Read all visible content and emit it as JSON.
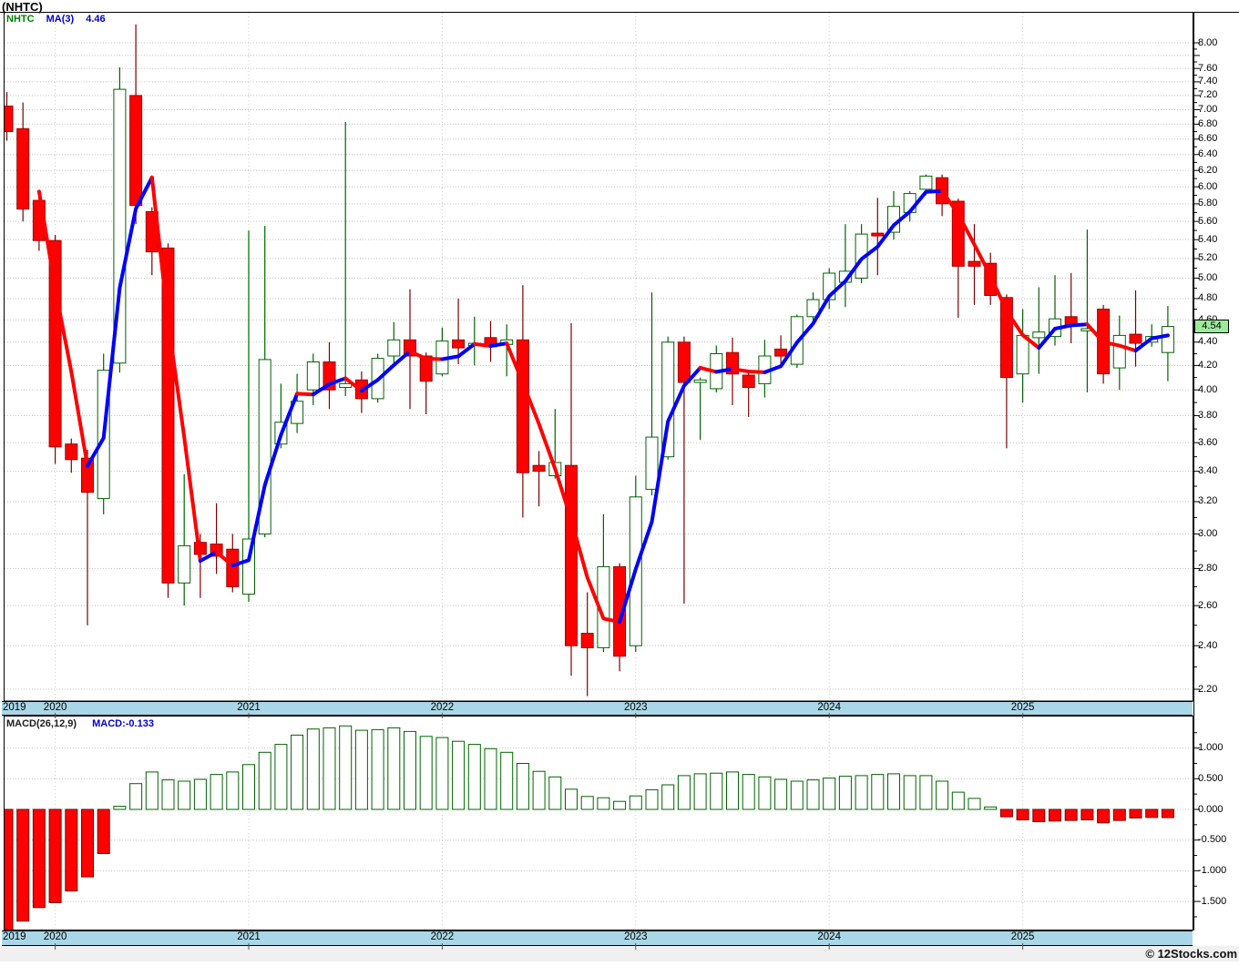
{
  "window": {
    "title": "(NHTC)"
  },
  "price_panel": {
    "legend": {
      "symbol": "NHTC",
      "ma_label": "MA(3)",
      "ma_value": "4.46"
    },
    "axis_labels": [
      "8.00",
      "7.60",
      "7.40",
      "7.20",
      "7.00",
      "6.80",
      "6.60",
      "6.40",
      "6.20",
      "6.00",
      "5.80",
      "5.60",
      "5.40",
      "5.20",
      "5.00",
      "4.80",
      "4.60",
      "4.40",
      "4.20",
      "4.00",
      "3.80",
      "3.60",
      "3.40",
      "3.20",
      "3.00",
      "2.80",
      "2.60",
      "2.40",
      "2.20"
    ],
    "price_tag": "4.54"
  },
  "macd_panel": {
    "legend_label": "MACD(26,12,9)",
    "legend_value": "MACD:-0.133",
    "axis_labels": [
      "1.000",
      "0.500",
      "0.000",
      "-0.500",
      "-1.000",
      "-1.500"
    ]
  },
  "timeline": {
    "years": [
      "2019",
      "2020",
      "2021",
      "2022",
      "2023",
      "2024",
      "2025"
    ],
    "jan_indices": [
      null,
      3,
      15,
      27,
      39,
      51,
      63
    ]
  },
  "footer": {
    "copyright": "© 12Stocks.com"
  },
  "colors": {
    "up_outline": "#006400",
    "down_fill": "#ff0000",
    "down_border": "#a00000",
    "down_wick": "#7d0000",
    "ma_up": "#0000ff",
    "ma_down": "#ff0000",
    "grid": "#c5c5c5",
    "band": "#aad7e7",
    "tag_bg": "#9ceb9c",
    "legend_symbol": "#007f00",
    "legend_blue": "#0000cd"
  },
  "chart_data": {
    "type": "candlestick",
    "title": "(NHTC) monthly candlestick chart with MA(3) overlay and MACD(26,12,9) histogram",
    "symbol": "NHTC",
    "interval": "monthly",
    "ma_period": 3,
    "ma_last_value": 4.46,
    "macd_last_value": -0.133,
    "price_axis_range": [
      2.2,
      8.0
    ],
    "price_scale": "log",
    "macd_axis_range": [
      -1.5,
      1.0
    ],
    "grid": true,
    "columns": [
      "date",
      "open",
      "high",
      "low",
      "close",
      "macd_hist"
    ],
    "rows": [
      [
        "2019-10",
        7.05,
        7.25,
        6.58,
        6.7,
        -2.05
      ],
      [
        "2019-11",
        6.74,
        7.1,
        5.6,
        5.74,
        -1.82
      ],
      [
        "2019-12",
        5.84,
        5.95,
        5.28,
        5.39,
        -1.6
      ],
      [
        "2020-01",
        5.39,
        5.45,
        3.45,
        3.57,
        -1.52
      ],
      [
        "2020-02",
        3.59,
        3.63,
        3.39,
        3.48,
        -1.33
      ],
      [
        "2020-03",
        3.49,
        3.55,
        2.5,
        3.26,
        -1.1
      ],
      [
        "2020-04",
        3.22,
        4.3,
        3.12,
        4.16,
        -0.72
      ],
      [
        "2020-05",
        4.22,
        7.62,
        4.14,
        7.29,
        0.05
      ],
      [
        "2020-06",
        7.2,
        8.3,
        5.57,
        5.78,
        0.42
      ],
      [
        "2020-07",
        5.71,
        5.76,
        5.03,
        5.27,
        0.61
      ],
      [
        "2020-08",
        5.31,
        5.36,
        2.64,
        2.72,
        0.48
      ],
      [
        "2020-09",
        2.72,
        3.38,
        2.6,
        2.93,
        0.46
      ],
      [
        "2020-10",
        2.95,
        3.0,
        2.64,
        2.88,
        0.49
      ],
      [
        "2020-11",
        2.94,
        3.19,
        2.77,
        2.87,
        0.57
      ],
      [
        "2020-12",
        2.91,
        3.0,
        2.67,
        2.7,
        0.61
      ],
      [
        "2021-01",
        2.66,
        5.5,
        2.62,
        2.97,
        0.73
      ],
      [
        "2021-02",
        3.0,
        5.55,
        2.98,
        4.25,
        0.93
      ],
      [
        "2021-03",
        3.59,
        4.05,
        3.56,
        3.75,
        1.06
      ],
      [
        "2021-04",
        3.74,
        4.13,
        3.67,
        3.91,
        1.21
      ],
      [
        "2021-05",
        4.0,
        4.3,
        3.88,
        4.23,
        1.31
      ],
      [
        "2021-06",
        4.23,
        4.4,
        3.85,
        4.0,
        1.33
      ],
      [
        "2021-07",
        4.02,
        6.83,
        3.95,
        4.05,
        1.36
      ],
      [
        "2021-08",
        4.08,
        4.15,
        3.82,
        3.93,
        1.29
      ],
      [
        "2021-09",
        3.93,
        4.3,
        3.9,
        4.26,
        1.3
      ],
      [
        "2021-10",
        4.28,
        4.58,
        4.2,
        4.42,
        1.33
      ],
      [
        "2021-11",
        4.42,
        4.89,
        3.85,
        4.28,
        1.27
      ],
      [
        "2021-12",
        4.28,
        4.31,
        3.81,
        4.07,
        1.19
      ],
      [
        "2022-01",
        4.13,
        4.53,
        4.11,
        4.41,
        1.17
      ],
      [
        "2022-02",
        4.42,
        4.8,
        4.21,
        4.35,
        1.11
      ],
      [
        "2022-03",
        4.37,
        4.63,
        4.2,
        4.39,
        1.06
      ],
      [
        "2022-04",
        4.44,
        4.59,
        4.23,
        4.36,
        0.99
      ],
      [
        "2022-05",
        4.38,
        4.56,
        4.11,
        4.42,
        0.93
      ],
      [
        "2022-06",
        4.42,
        4.93,
        3.1,
        3.39,
        0.75
      ],
      [
        "2022-07",
        3.44,
        3.54,
        3.17,
        3.4,
        0.62
      ],
      [
        "2022-08",
        3.37,
        3.85,
        3.35,
        3.46,
        0.53
      ],
      [
        "2022-09",
        3.44,
        4.57,
        2.26,
        2.4,
        0.33
      ],
      [
        "2022-10",
        2.46,
        2.67,
        2.17,
        2.39,
        0.21
      ],
      [
        "2022-11",
        2.39,
        3.12,
        2.37,
        2.81,
        0.19
      ],
      [
        "2022-12",
        2.81,
        2.83,
        2.28,
        2.35,
        0.13
      ],
      [
        "2023-01",
        2.4,
        3.37,
        2.37,
        3.23,
        0.22
      ],
      [
        "2023-02",
        3.28,
        4.86,
        3.24,
        3.64,
        0.32
      ],
      [
        "2023-03",
        3.5,
        4.45,
        3.48,
        4.4,
        0.4
      ],
      [
        "2023-04",
        4.4,
        4.45,
        2.61,
        4.06,
        0.55
      ],
      [
        "2023-05",
        4.06,
        4.1,
        3.62,
        4.08,
        0.58
      ],
      [
        "2023-06",
        4.01,
        4.37,
        3.98,
        4.3,
        0.59
      ],
      [
        "2023-07",
        4.31,
        4.44,
        3.88,
        4.13,
        0.61
      ],
      [
        "2023-08",
        4.12,
        4.15,
        3.79,
        4.02,
        0.57
      ],
      [
        "2023-09",
        4.05,
        4.42,
        3.94,
        4.28,
        0.53
      ],
      [
        "2023-10",
        4.34,
        4.46,
        4.19,
        4.28,
        0.49
      ],
      [
        "2023-11",
        4.21,
        4.65,
        4.18,
        4.63,
        0.46
      ],
      [
        "2023-12",
        4.63,
        4.86,
        4.55,
        4.79,
        0.48
      ],
      [
        "2024-01",
        4.79,
        5.1,
        4.7,
        5.05,
        0.51
      ],
      [
        "2024-02",
        4.96,
        5.57,
        4.72,
        5.07,
        0.54
      ],
      [
        "2024-03",
        5.0,
        5.57,
        4.95,
        5.46,
        0.55
      ],
      [
        "2024-04",
        5.47,
        5.87,
        5.03,
        5.44,
        0.57
      ],
      [
        "2024-05",
        5.48,
        5.95,
        5.4,
        5.77,
        0.58
      ],
      [
        "2024-06",
        5.7,
        5.95,
        5.6,
        5.92,
        0.55
      ],
      [
        "2024-07",
        5.97,
        6.15,
        5.9,
        6.13,
        0.55
      ],
      [
        "2024-08",
        6.11,
        6.15,
        5.66,
        5.8,
        0.46
      ],
      [
        "2024-09",
        5.83,
        5.86,
        4.62,
        5.12,
        0.28
      ],
      [
        "2024-10",
        5.17,
        5.57,
        4.74,
        5.12,
        0.18
      ],
      [
        "2024-11",
        5.15,
        5.26,
        4.74,
        4.83,
        0.04
      ],
      [
        "2024-12",
        4.81,
        4.84,
        3.56,
        4.1,
        -0.12
      ],
      [
        "2025-01",
        4.13,
        4.7,
        3.9,
        4.46,
        -0.17
      ],
      [
        "2025-02",
        4.44,
        4.91,
        4.13,
        4.49,
        -0.2
      ],
      [
        "2025-03",
        4.45,
        5.03,
        4.37,
        4.61,
        -0.19
      ],
      [
        "2025-04",
        4.63,
        5.05,
        4.39,
        4.55,
        -0.18
      ],
      [
        "2025-05",
        4.5,
        5.51,
        3.98,
        4.52,
        -0.17
      ],
      [
        "2025-06",
        4.7,
        4.74,
        4.05,
        4.13,
        -0.22
      ],
      [
        "2025-07",
        4.18,
        4.64,
        4.0,
        4.46,
        -0.18
      ],
      [
        "2025-08",
        4.47,
        4.88,
        4.19,
        4.39,
        -0.14
      ],
      [
        "2025-09",
        4.4,
        4.56,
        4.36,
        4.45,
        -0.13
      ],
      [
        "2025-10",
        4.31,
        4.73,
        4.07,
        4.54,
        -0.133
      ]
    ]
  }
}
